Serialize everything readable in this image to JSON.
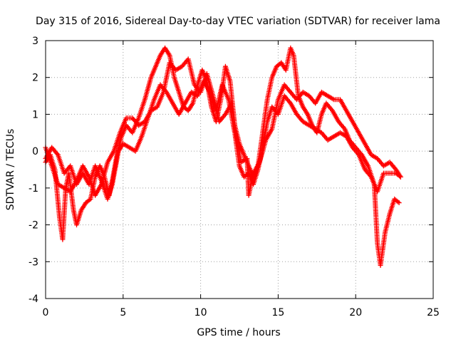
{
  "chart_data": {
    "type": "scatter",
    "title": "Day 315 of 2016, Sidereal Day-to-day VTEC variation (SDTVAR) for receiver lama",
    "xlabel": "GPS time / hours",
    "ylabel": "SDTVAR / TECUs",
    "xlim": [
      0,
      25
    ],
    "ylim": [
      -4,
      3
    ],
    "xticks": [
      0,
      5,
      10,
      15,
      20,
      25
    ],
    "yticks": [
      -4,
      -3,
      -2,
      -1,
      0,
      1,
      2,
      3
    ],
    "grid": true,
    "marker": "+",
    "series": [
      {
        "name": "trace-1",
        "color": "#ff0000",
        "points": [
          [
            0.0,
            -0.3
          ],
          [
            0.3,
            -0.1
          ],
          [
            0.6,
            -0.5
          ],
          [
            0.9,
            -1.8
          ],
          [
            1.1,
            -2.4
          ],
          [
            1.3,
            -1.0
          ],
          [
            1.5,
            -0.6
          ],
          [
            1.8,
            -1.6
          ],
          [
            2.0,
            -2.0
          ],
          [
            2.3,
            -1.6
          ],
          [
            2.6,
            -1.4
          ],
          [
            2.9,
            -1.3
          ],
          [
            3.2,
            -0.7
          ],
          [
            3.5,
            -0.4
          ],
          [
            3.8,
            -0.7
          ],
          [
            4.1,
            -1.2
          ],
          [
            4.3,
            -0.8
          ],
          [
            4.6,
            -0.1
          ],
          [
            4.9,
            0.4
          ],
          [
            5.2,
            0.7
          ],
          [
            5.6,
            0.5
          ],
          [
            6.0,
            0.9
          ],
          [
            6.4,
            1.4
          ],
          [
            6.8,
            2.0
          ],
          [
            7.1,
            2.3
          ],
          [
            7.4,
            2.6
          ],
          [
            7.7,
            2.8
          ],
          [
            8.0,
            2.6
          ],
          [
            8.3,
            2.0
          ],
          [
            8.6,
            1.6
          ],
          [
            8.9,
            1.2
          ],
          [
            9.2,
            1.1
          ],
          [
            9.5,
            1.3
          ],
          [
            9.8,
            1.8
          ],
          [
            10.1,
            2.2
          ],
          [
            10.4,
            1.9
          ],
          [
            10.7,
            1.2
          ],
          [
            11.0,
            0.8
          ],
          [
            11.3,
            1.4
          ],
          [
            11.6,
            2.3
          ],
          [
            11.9,
            1.9
          ],
          [
            12.2,
            0.7
          ],
          [
            12.5,
            0.2
          ],
          [
            12.8,
            -0.1
          ],
          [
            13.1,
            -0.4
          ],
          [
            13.4,
            -0.7
          ],
          [
            13.7,
            -0.4
          ],
          [
            14.0,
            0.5
          ],
          [
            14.3,
            1.4
          ],
          [
            14.6,
            2.0
          ],
          [
            14.9,
            2.3
          ],
          [
            15.2,
            2.4
          ],
          [
            15.5,
            2.2
          ],
          [
            15.8,
            2.8
          ],
          [
            16.0,
            2.6
          ],
          [
            16.3,
            1.5
          ],
          [
            16.6,
            1.2
          ],
          [
            16.9,
            1.0
          ],
          [
            17.2,
            0.7
          ],
          [
            17.5,
            0.5
          ],
          [
            17.8,
            1.0
          ],
          [
            18.1,
            1.3
          ],
          [
            18.5,
            1.1
          ],
          [
            18.9,
            0.8
          ],
          [
            19.3,
            0.6
          ],
          [
            19.6,
            0.3
          ],
          [
            20.0,
            0.1
          ],
          [
            20.4,
            -0.1
          ],
          [
            20.8,
            -0.4
          ],
          [
            21.2,
            -0.9
          ],
          [
            21.4,
            -2.5
          ],
          [
            21.6,
            -3.1
          ],
          [
            21.9,
            -2.2
          ],
          [
            22.2,
            -1.7
          ],
          [
            22.5,
            -1.3
          ],
          [
            22.8,
            -1.4
          ]
        ]
      },
      {
        "name": "trace-2",
        "color": "#ff0000",
        "points": [
          [
            0.0,
            -0.2
          ],
          [
            0.4,
            0.1
          ],
          [
            0.8,
            -0.1
          ],
          [
            1.2,
            -0.6
          ],
          [
            1.6,
            -0.4
          ],
          [
            2.0,
            -0.9
          ],
          [
            2.4,
            -0.6
          ],
          [
            2.8,
            -0.9
          ],
          [
            3.2,
            -0.4
          ],
          [
            3.6,
            -0.8
          ],
          [
            4.0,
            -1.3
          ],
          [
            4.3,
            -0.9
          ],
          [
            4.7,
            0.0
          ],
          [
            5.0,
            0.2
          ],
          [
            5.4,
            0.1
          ],
          [
            5.8,
            0.0
          ],
          [
            6.2,
            0.4
          ],
          [
            6.6,
            0.9
          ],
          [
            7.0,
            1.4
          ],
          [
            7.4,
            1.8
          ],
          [
            7.8,
            1.6
          ],
          [
            8.2,
            1.3
          ],
          [
            8.6,
            1.0
          ],
          [
            9.0,
            1.3
          ],
          [
            9.4,
            1.6
          ],
          [
            9.8,
            1.5
          ],
          [
            10.2,
            1.9
          ],
          [
            10.6,
            1.6
          ],
          [
            11.0,
            1.1
          ],
          [
            11.4,
            1.8
          ],
          [
            11.8,
            1.4
          ],
          [
            12.2,
            0.5
          ],
          [
            12.5,
            -0.4
          ],
          [
            12.8,
            -0.7
          ],
          [
            13.1,
            -0.6
          ],
          [
            13.4,
            -0.9
          ],
          [
            13.7,
            -0.5
          ],
          [
            14.0,
            0.1
          ],
          [
            14.3,
            0.8
          ],
          [
            14.6,
            1.2
          ],
          [
            15.0,
            1.0
          ],
          [
            15.4,
            1.5
          ],
          [
            15.8,
            1.3
          ],
          [
            16.2,
            1.0
          ],
          [
            16.6,
            0.8
          ],
          [
            17.0,
            0.7
          ],
          [
            17.4,
            0.6
          ],
          [
            17.8,
            0.5
          ],
          [
            18.2,
            0.3
          ],
          [
            18.6,
            0.4
          ],
          [
            19.0,
            0.5
          ],
          [
            19.4,
            0.4
          ],
          [
            19.8,
            0.1
          ],
          [
            20.2,
            -0.1
          ],
          [
            20.6,
            -0.5
          ],
          [
            21.0,
            -0.7
          ],
          [
            21.4,
            -1.1
          ],
          [
            21.8,
            -0.6
          ],
          [
            22.2,
            -0.6
          ],
          [
            22.6,
            -0.6
          ],
          [
            22.9,
            -0.7
          ]
        ]
      },
      {
        "name": "trace-3",
        "color": "#ff0000",
        "points": [
          [
            0.0,
            0.1
          ],
          [
            0.4,
            -0.4
          ],
          [
            0.8,
            -0.9
          ],
          [
            1.2,
            -1.0
          ],
          [
            1.6,
            -1.1
          ],
          [
            2.0,
            -0.8
          ],
          [
            2.4,
            -0.4
          ],
          [
            2.8,
            -0.7
          ],
          [
            3.2,
            -1.2
          ],
          [
            3.6,
            -0.9
          ],
          [
            4.0,
            -0.3
          ],
          [
            4.4,
            0.0
          ],
          [
            4.8,
            0.5
          ],
          [
            5.2,
            0.9
          ],
          [
            5.6,
            0.9
          ],
          [
            6.0,
            0.7
          ],
          [
            6.4,
            0.8
          ],
          [
            6.8,
            1.1
          ],
          [
            7.2,
            1.2
          ],
          [
            7.6,
            1.6
          ],
          [
            8.0,
            2.4
          ],
          [
            8.4,
            2.2
          ],
          [
            8.8,
            2.3
          ],
          [
            9.2,
            2.5
          ],
          [
            9.6,
            1.8
          ],
          [
            10.0,
            1.6
          ],
          [
            10.4,
            2.1
          ],
          [
            10.8,
            1.5
          ],
          [
            11.2,
            0.8
          ],
          [
            11.6,
            1.0
          ],
          [
            12.0,
            1.3
          ],
          [
            12.3,
            0.4
          ],
          [
            12.6,
            -0.3
          ],
          [
            13.0,
            -0.2
          ],
          [
            13.1,
            -1.2
          ],
          [
            13.4,
            -0.6
          ],
          [
            13.8,
            -0.3
          ],
          [
            14.2,
            0.3
          ],
          [
            14.6,
            0.6
          ],
          [
            15.0,
            1.4
          ],
          [
            15.4,
            1.8
          ],
          [
            15.8,
            1.6
          ],
          [
            16.2,
            1.4
          ],
          [
            16.6,
            1.6
          ],
          [
            17.0,
            1.5
          ],
          [
            17.4,
            1.3
          ],
          [
            17.8,
            1.6
          ],
          [
            18.2,
            1.5
          ],
          [
            18.6,
            1.4
          ],
          [
            19.0,
            1.4
          ],
          [
            19.4,
            1.1
          ],
          [
            19.8,
            0.8
          ],
          [
            20.2,
            0.5
          ],
          [
            20.6,
            0.2
          ],
          [
            21.0,
            -0.1
          ],
          [
            21.4,
            -0.2
          ],
          [
            21.8,
            -0.4
          ],
          [
            22.2,
            -0.3
          ],
          [
            22.6,
            -0.5
          ],
          [
            22.9,
            -0.7
          ]
        ]
      }
    ]
  }
}
